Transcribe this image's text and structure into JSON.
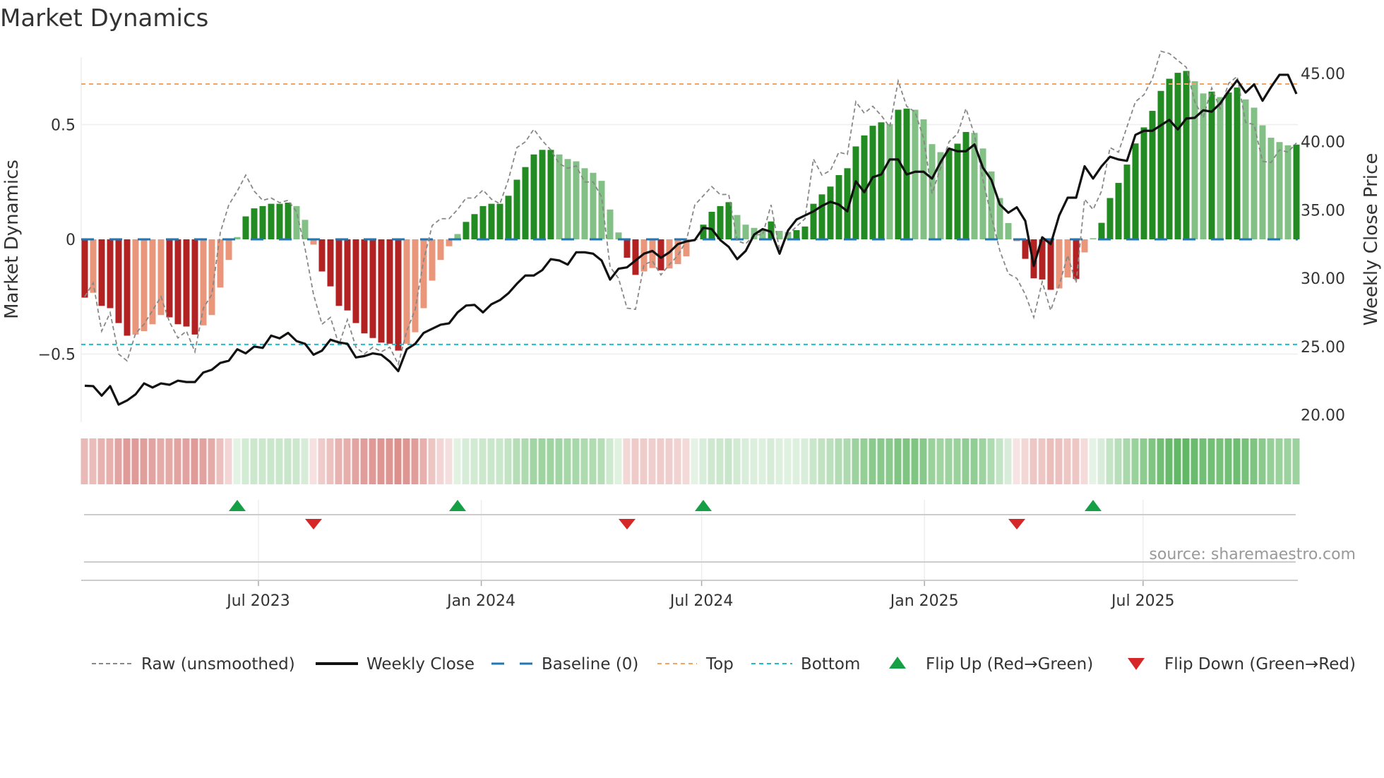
{
  "chart_data": {
    "type": "bar",
    "title": "Market Dynamics",
    "ylabel": "Market Dynamics",
    "y2label": "Weekly Close Price",
    "ylim": [
      -0.797,
      0.794
    ],
    "y2lim": [
      19.46,
      46.19
    ],
    "yticks": [
      {
        "v": 0.5,
        "label": "0.5"
      },
      {
        "v": 0,
        "label": "0"
      },
      {
        "v": -0.5,
        "label": "−0.5"
      }
    ],
    "y2ticks": [
      {
        "v": 45,
        "label": "45.00"
      },
      {
        "v": 40,
        "label": "40.00"
      },
      {
        "v": 35,
        "label": "35.00"
      },
      {
        "v": 30,
        "label": "30.00"
      },
      {
        "v": 25,
        "label": "25.00"
      },
      {
        "v": 20,
        "label": "20.00"
      }
    ],
    "xticks": [
      {
        "week": 20.5,
        "label": "Jul 2023"
      },
      {
        "week": 46.8,
        "label": "Jan 2024"
      },
      {
        "week": 72.8,
        "label": "Jul 2024"
      },
      {
        "week": 99.1,
        "label": "Jan 2025"
      },
      {
        "week": 124.9,
        "label": "Jul 2025"
      }
    ],
    "top": 0.677,
    "bottom": -0.458,
    "baseline": 0,
    "values": [
      -0.254,
      -0.233,
      -0.29,
      -0.3,
      -0.365,
      -0.42,
      -0.415,
      -0.4,
      -0.37,
      -0.33,
      -0.34,
      -0.37,
      -0.38,
      -0.415,
      -0.375,
      -0.33,
      -0.21,
      -0.09,
      0.01,
      0.1,
      0.135,
      0.145,
      0.155,
      0.155,
      0.16,
      0.145,
      0.085,
      -0.023,
      -0.14,
      -0.205,
      -0.29,
      -0.31,
      -0.365,
      -0.41,
      -0.43,
      -0.45,
      -0.455,
      -0.485,
      -0.455,
      -0.405,
      -0.3,
      -0.18,
      -0.09,
      -0.03,
      0.023,
      0.076,
      0.11,
      0.145,
      0.155,
      0.155,
      0.19,
      0.26,
      0.315,
      0.37,
      0.39,
      0.39,
      0.37,
      0.35,
      0.34,
      0.31,
      0.29,
      0.255,
      0.13,
      0.03,
      -0.08,
      -0.155,
      -0.14,
      -0.125,
      -0.135,
      -0.127,
      -0.108,
      -0.074,
      0.0,
      0.064,
      0.12,
      0.145,
      0.162,
      0.106,
      0.064,
      0.05,
      0.04,
      0.078,
      0.037,
      0.032,
      0.04,
      0.056,
      0.155,
      0.196,
      0.23,
      0.28,
      0.31,
      0.405,
      0.453,
      0.495,
      0.51,
      0.503,
      0.565,
      0.57,
      0.565,
      0.523,
      0.415,
      0.38,
      0.395,
      0.417,
      0.468,
      0.464,
      0.396,
      0.296,
      0.18,
      0.071,
      -0.008,
      -0.085,
      -0.17,
      -0.175,
      -0.22,
      -0.214,
      -0.166,
      -0.173,
      -0.057,
      0.005,
      0.072,
      0.18,
      0.246,
      0.326,
      0.418,
      0.488,
      0.56,
      0.647,
      0.7,
      0.726,
      0.734,
      0.689,
      0.636,
      0.644,
      0.62,
      0.64,
      0.662,
      0.61,
      0.574,
      0.497,
      0.443,
      0.424,
      0.41,
      0.413
    ],
    "raw": [
      -0.25,
      -0.19,
      -0.4,
      -0.32,
      -0.5,
      -0.53,
      -0.41,
      -0.37,
      -0.31,
      -0.25,
      -0.36,
      -0.43,
      -0.4,
      -0.49,
      -0.3,
      -0.24,
      0.03,
      0.15,
      0.21,
      0.28,
      0.21,
      0.17,
      0.18,
      0.16,
      0.17,
      0.12,
      -0.04,
      -0.24,
      -0.37,
      -0.34,
      -0.46,
      -0.35,
      -0.47,
      -0.5,
      -0.47,
      -0.49,
      -0.47,
      -0.545,
      -0.4,
      -0.305,
      -0.09,
      0.06,
      0.09,
      0.09,
      0.13,
      0.18,
      0.18,
      0.215,
      0.175,
      0.155,
      0.26,
      0.4,
      0.425,
      0.48,
      0.43,
      0.39,
      0.33,
      0.31,
      0.32,
      0.25,
      0.25,
      0.185,
      -0.12,
      -0.17,
      -0.3,
      -0.305,
      -0.11,
      -0.095,
      -0.155,
      -0.11,
      -0.07,
      -0.006,
      0.15,
      0.19,
      0.23,
      0.195,
      0.196,
      -0.006,
      -0.02,
      0.02,
      0.02,
      0.15,
      -0.045,
      0.02,
      0.056,
      0.09,
      0.35,
      0.28,
      0.3,
      0.38,
      0.37,
      0.6,
      0.55,
      0.58,
      0.54,
      0.49,
      0.69,
      0.58,
      0.555,
      0.44,
      0.2,
      0.31,
      0.425,
      0.46,
      0.57,
      0.456,
      0.26,
      0.1,
      -0.05,
      -0.15,
      -0.17,
      -0.24,
      -0.34,
      -0.185,
      -0.31,
      -0.2,
      -0.07,
      -0.19,
      0.175,
      0.13,
      0.21,
      0.4,
      0.38,
      0.49,
      0.6,
      0.63,
      0.7,
      0.82,
      0.81,
      0.78,
      0.75,
      0.6,
      0.53,
      0.66,
      0.57,
      0.68,
      0.71,
      0.51,
      0.5,
      0.34,
      0.335,
      0.39,
      0.38,
      0.42
    ],
    "close": [
      22.13,
      22.1,
      21.4,
      22.1,
      20.75,
      21.05,
      21.5,
      22.3,
      22.0,
      22.3,
      22.2,
      22.5,
      22.4,
      22.4,
      23.1,
      23.3,
      23.8,
      23.96,
      24.8,
      24.5,
      25.0,
      24.9,
      25.8,
      25.6,
      26.0,
      25.4,
      25.2,
      24.4,
      24.7,
      25.5,
      25.3,
      25.2,
      24.2,
      24.3,
      24.5,
      24.4,
      23.9,
      23.2,
      24.8,
      25.2,
      26.0,
      26.3,
      26.6,
      26.7,
      27.5,
      28.0,
      28.05,
      27.5,
      28.1,
      28.4,
      28.9,
      29.6,
      30.2,
      30.2,
      30.6,
      31.4,
      31.3,
      31.0,
      31.9,
      31.9,
      31.8,
      31.3,
      29.9,
      30.7,
      30.8,
      31.3,
      31.8,
      32.0,
      31.5,
      31.9,
      32.5,
      32.7,
      32.8,
      33.7,
      33.6,
      32.8,
      32.3,
      31.4,
      32.0,
      33.2,
      33.6,
      33.4,
      31.8,
      33.5,
      34.3,
      34.6,
      34.9,
      35.3,
      35.6,
      35.4,
      34.9,
      37.1,
      36.3,
      37.4,
      37.6,
      38.7,
      38.7,
      37.6,
      37.8,
      37.8,
      37.3,
      38.5,
      39.5,
      39.3,
      39.3,
      39.8,
      38.1,
      37.2,
      35.4,
      34.8,
      35.2,
      34.2,
      30.9,
      33.0,
      32.5,
      34.6,
      35.9,
      35.9,
      38.2,
      37.3,
      38.2,
      38.9,
      38.7,
      38.6,
      40.5,
      40.8,
      40.8,
      41.2,
      41.6,
      40.9,
      41.7,
      41.75,
      42.3,
      42.2,
      42.8,
      43.7,
      44.5,
      43.6,
      44.2,
      43.0,
      44.0,
      44.9,
      44.9,
      43.5
    ],
    "flip_up_weeks": [
      18,
      44,
      73,
      119
    ],
    "flip_down_weeks": [
      27,
      64,
      110
    ],
    "legend": {
      "placement": "bottom",
      "items": [
        "Raw (unsmoothed)",
        "Weekly Close",
        "Baseline (0)",
        "Top",
        "Bottom",
        "Flip Up (Red→Green)",
        "Flip Down (Green→Red)"
      ]
    },
    "source": "source: sharemaestro.com"
  },
  "colors": {
    "green_dark": "#228b22",
    "green_light": "#82c085",
    "red_dark": "#b22222",
    "red_light": "#e9967a",
    "raw": "#888888",
    "close": "#111111",
    "baseline": "#1f77b4",
    "top": "#f4a460",
    "bottom": "#17becf",
    "flip_up": "#16a045",
    "flip_down": "#d62728"
  }
}
